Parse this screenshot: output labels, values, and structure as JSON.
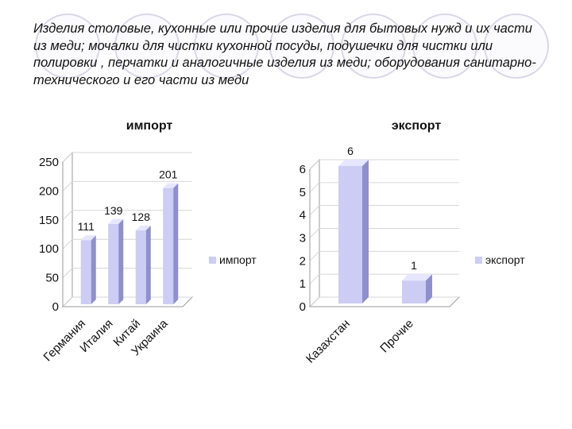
{
  "slide": {
    "title": "Изделия столовые, кухонные или прочие изделия для бытовых нужд и их части из меди; мочалки для чистки кухонной посуды, подушечки для чистки или полировки , перчатки и аналогичные изделия из меди; оборудования санитарно-технического и его части из меди"
  },
  "colors": {
    "bar_front": "#ccccf5",
    "bar_side": "#8f8fcc",
    "bar_top": "#e6e6ff",
    "grid": "#d6d6d6",
    "axis": "#9a9a9a",
    "deco_circle_stroke": "#d8d8e6"
  },
  "chart_data": [
    {
      "type": "bar",
      "title": "импорт",
      "categories": [
        "Германия",
        "Италия",
        "Китай",
        "Украина"
      ],
      "series": [
        {
          "name": "импорт",
          "values": [
            111,
            139,
            128,
            201
          ]
        }
      ],
      "ylim": [
        0,
        250
      ],
      "yticks": [
        "0",
        "50",
        "100",
        "150",
        "200",
        "250"
      ],
      "grid": true,
      "legend": "right"
    },
    {
      "type": "bar",
      "title": "экспорт",
      "categories": [
        "Казахстан",
        "Прочие"
      ],
      "series": [
        {
          "name": "экспорт",
          "values": [
            6,
            1
          ]
        }
      ],
      "ylim": [
        0,
        6
      ],
      "yticks": [
        "0",
        "1",
        "2",
        "3",
        "4",
        "5",
        "6"
      ],
      "grid": true,
      "legend": "right"
    }
  ]
}
